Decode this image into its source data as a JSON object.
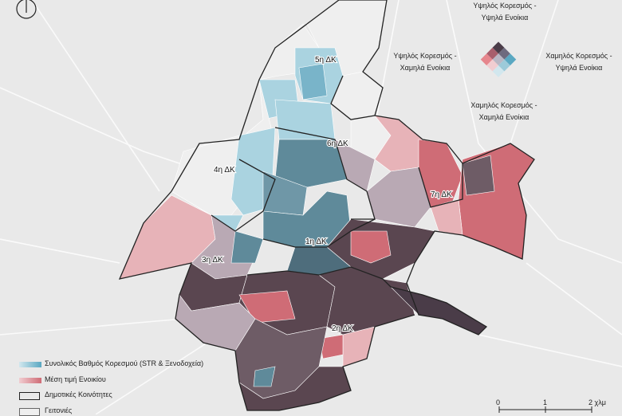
{
  "bivariate_legend": {
    "top": [
      "Υψηλός Κορεσμός -",
      "Υψηλά Ενοίκια"
    ],
    "left": [
      "Υψηλός Κορεσμός -",
      "Χαμηλά Ενοίκια"
    ],
    "right": [
      "Χαμηλός Κορεσμός -",
      "Υψηλά Ενοίκια"
    ],
    "bottom": [
      "Χαμηλός Κορεσμός -",
      "Χαμηλά Ενοίκια"
    ],
    "grid_colors": [
      "#d2e7ee",
      "#9ccad9",
      "#5aa8c2",
      "#f1cdd1",
      "#b9b7c4",
      "#6e6a7e",
      "#e6868d",
      "#a85e6c",
      "#4a3c48"
    ]
  },
  "legend": {
    "saturation": "Συνολικός Βαθμός Κορεσμού (STR & Ξενοδοχεία)",
    "rent": "Μέση τιμή Ενοικίου",
    "communities": "Δημοτικές Κοινότητες",
    "neighborhoods": "Γειτονιές"
  },
  "scale": {
    "ticks": [
      "0",
      "1",
      "2 χλμ"
    ]
  },
  "districts": [
    "1η ΔΚ",
    "2η ΔΚ",
    "3η ΔΚ",
    "4η ΔΚ",
    "5η ΔΚ",
    "6η ΔΚ",
    "7η ΔΚ"
  ],
  "colors": {
    "blue_light": "#aad3e0",
    "blue_mid": "#79b4c9",
    "blue_dark": "#5f8a9a",
    "pink_light": "#e7b3b8",
    "red": "#cf6c76",
    "mauve_dark": "#5a4650",
    "gray_light": "#efefef"
  }
}
